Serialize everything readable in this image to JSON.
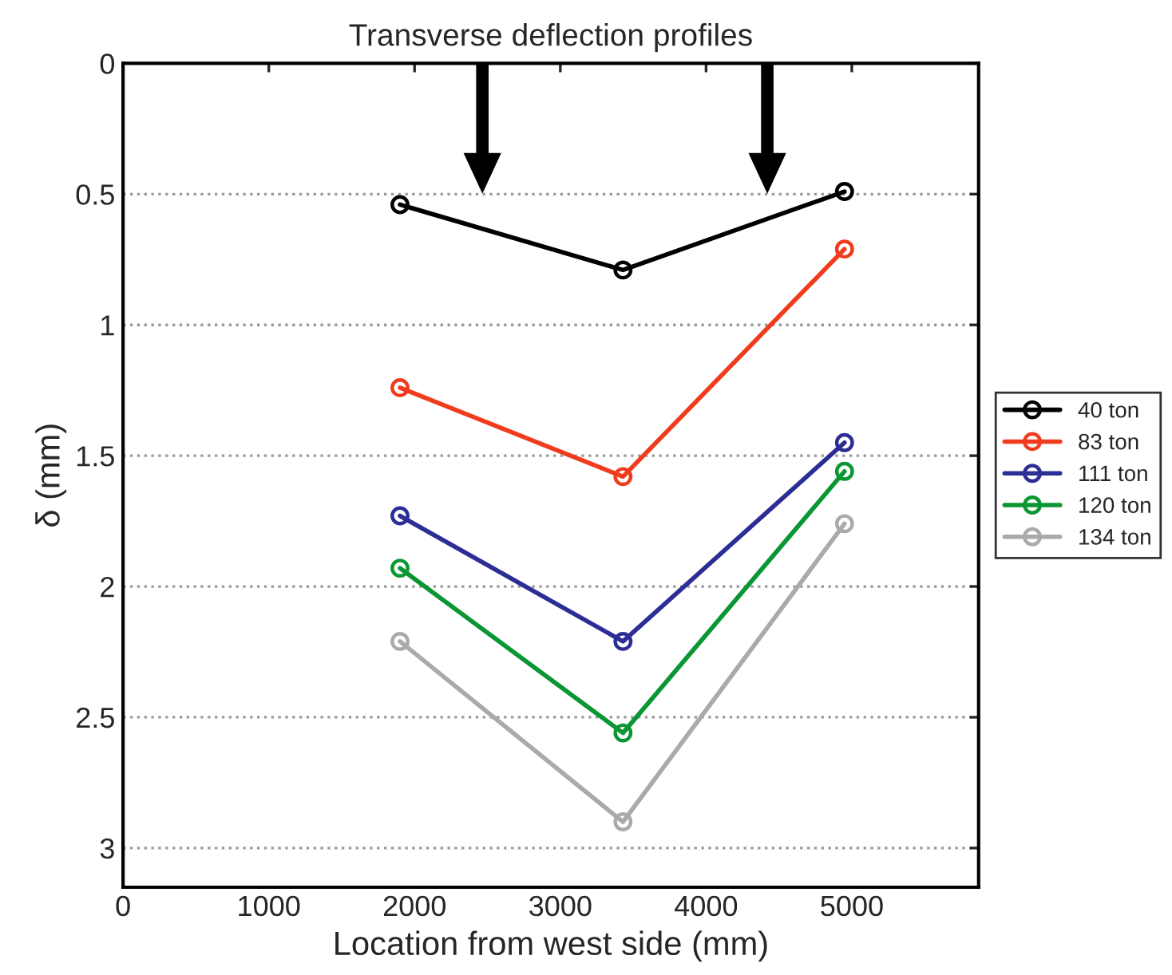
{
  "chart_data": {
    "type": "line",
    "title": "Transverse deflection profiles",
    "xlabel": "Location from west side (mm)",
    "ylabel": "δ (mm)",
    "x": [
      1900,
      3430,
      4950
    ],
    "series": [
      {
        "name": "40 ton",
        "color": "#000000",
        "values": [
          0.54,
          0.79,
          0.49
        ]
      },
      {
        "name": "83 ton",
        "color": "#f03c1e",
        "values": [
          1.24,
          1.58,
          0.71
        ]
      },
      {
        "name": "111 ton",
        "color": "#2d2d96",
        "values": [
          1.73,
          2.21,
          1.45
        ]
      },
      {
        "name": "120 ton",
        "color": "#0a9632",
        "values": [
          1.93,
          2.56,
          1.56
        ]
      },
      {
        "name": "134 ton",
        "color": "#aaaaaa",
        "values": [
          2.21,
          2.9,
          1.76
        ]
      }
    ],
    "xlim": [
      0,
      5870
    ],
    "xticks": [
      0,
      1000,
      2000,
      3000,
      4000,
      5000
    ],
    "ylim": [
      3.15,
      0
    ],
    "yticks": [
      0,
      0.5,
      1,
      1.5,
      2,
      2.5,
      3
    ],
    "grid": "y",
    "legend": "right",
    "marker": "circle",
    "line_style": "solid"
  }
}
